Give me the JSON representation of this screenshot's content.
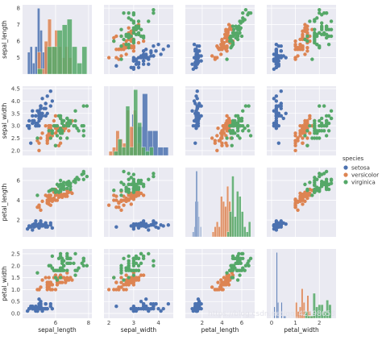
{
  "chart_data": {
    "type": "scatter",
    "variables": [
      "sepal_length",
      "sepal_width",
      "petal_length",
      "petal_width"
    ],
    "axis_labels": {
      "rows": [
        "sepal_length",
        "sepal_width",
        "petal_length",
        "petal_width"
      ],
      "cols": [
        "sepal_length",
        "sepal_width",
        "petal_length",
        "petal_width"
      ]
    },
    "ticks": {
      "sepal_length": [
        5,
        6,
        7,
        8
      ],
      "sepal_width": [
        2.0,
        2.5,
        3.0,
        3.5,
        4.0,
        4.5
      ],
      "petal_length": [
        2,
        4,
        6
      ],
      "petal_width": [
        0.0,
        0.5,
        1.0,
        1.5,
        2.0,
        2.5
      ]
    },
    "ticks_x": {
      "sepal_length": [
        6,
        8
      ],
      "sepal_width": [
        2,
        3,
        4
      ],
      "petal_length": [
        2,
        4,
        6
      ],
      "petal_width": [
        0,
        1,
        2
      ]
    },
    "ranges": {
      "sepal_length": [
        4.0,
        8.2
      ],
      "sepal_width": [
        1.8,
        4.6
      ],
      "petal_length": [
        0.3,
        7.3
      ],
      "petal_width": [
        -0.2,
        2.7
      ]
    },
    "diag_range": {
      "sepal_length": [
        4.0,
        8.2
      ]
    },
    "diagonal": "histogram",
    "grid": true,
    "legend": {
      "title": "species",
      "placement": "right",
      "entries": [
        {
          "name": "setosa",
          "color": "#4c72b0"
        },
        {
          "name": "versicolor",
          "color": "#dd8452"
        },
        {
          "name": "virginica",
          "color": "#55a868"
        }
      ]
    },
    "watermark": "https://blog.csdn.net/qq_42398658",
    "series": [
      {
        "name": "setosa",
        "color": "#4c72b0",
        "points": [
          [
            5.1,
            3.5,
            1.4,
            0.2
          ],
          [
            4.9,
            3.0,
            1.4,
            0.2
          ],
          [
            4.7,
            3.2,
            1.3,
            0.2
          ],
          [
            4.6,
            3.1,
            1.5,
            0.2
          ],
          [
            5.0,
            3.6,
            1.4,
            0.2
          ],
          [
            5.4,
            3.9,
            1.7,
            0.4
          ],
          [
            4.6,
            3.4,
            1.4,
            0.3
          ],
          [
            5.0,
            3.4,
            1.5,
            0.2
          ],
          [
            4.4,
            2.9,
            1.4,
            0.2
          ],
          [
            4.9,
            3.1,
            1.5,
            0.1
          ],
          [
            5.4,
            3.7,
            1.5,
            0.2
          ],
          [
            4.8,
            3.4,
            1.6,
            0.2
          ],
          [
            4.8,
            3.0,
            1.4,
            0.1
          ],
          [
            4.3,
            3.0,
            1.1,
            0.1
          ],
          [
            5.8,
            4.0,
            1.2,
            0.2
          ],
          [
            5.7,
            4.4,
            1.5,
            0.4
          ],
          [
            5.4,
            3.9,
            1.3,
            0.4
          ],
          [
            5.1,
            3.5,
            1.4,
            0.3
          ],
          [
            5.7,
            3.8,
            1.7,
            0.3
          ],
          [
            5.1,
            3.8,
            1.5,
            0.3
          ],
          [
            5.4,
            3.4,
            1.7,
            0.2
          ],
          [
            5.1,
            3.7,
            1.5,
            0.4
          ],
          [
            4.6,
            3.6,
            1.0,
            0.2
          ],
          [
            5.1,
            3.3,
            1.7,
            0.5
          ],
          [
            4.8,
            3.4,
            1.9,
            0.2
          ],
          [
            5.0,
            3.0,
            1.6,
            0.2
          ],
          [
            5.0,
            3.4,
            1.6,
            0.4
          ],
          [
            5.2,
            3.5,
            1.5,
            0.2
          ],
          [
            5.2,
            3.4,
            1.4,
            0.2
          ],
          [
            4.7,
            3.2,
            1.6,
            0.2
          ],
          [
            4.8,
            3.1,
            1.6,
            0.2
          ],
          [
            5.4,
            3.4,
            1.5,
            0.4
          ],
          [
            5.2,
            4.1,
            1.5,
            0.1
          ],
          [
            5.5,
            4.2,
            1.4,
            0.2
          ],
          [
            4.9,
            3.1,
            1.5,
            0.2
          ],
          [
            5.0,
            3.2,
            1.2,
            0.2
          ],
          [
            5.5,
            3.5,
            1.3,
            0.2
          ],
          [
            4.9,
            3.6,
            1.4,
            0.1
          ],
          [
            4.4,
            3.0,
            1.3,
            0.2
          ],
          [
            5.1,
            3.4,
            1.5,
            0.2
          ],
          [
            5.0,
            3.5,
            1.3,
            0.3
          ],
          [
            4.5,
            2.3,
            1.3,
            0.3
          ],
          [
            4.4,
            3.2,
            1.3,
            0.2
          ],
          [
            5.0,
            3.5,
            1.6,
            0.6
          ],
          [
            5.1,
            3.8,
            1.9,
            0.4
          ],
          [
            4.8,
            3.0,
            1.4,
            0.3
          ],
          [
            5.1,
            3.8,
            1.6,
            0.2
          ],
          [
            4.6,
            3.2,
            1.4,
            0.2
          ],
          [
            5.3,
            3.7,
            1.5,
            0.2
          ],
          [
            5.0,
            3.3,
            1.4,
            0.2
          ]
        ]
      },
      {
        "name": "versicolor",
        "color": "#dd8452",
        "points": [
          [
            7.0,
            3.2,
            4.7,
            1.4
          ],
          [
            6.4,
            3.2,
            4.5,
            1.5
          ],
          [
            6.9,
            3.1,
            4.9,
            1.5
          ],
          [
            5.5,
            2.3,
            4.0,
            1.3
          ],
          [
            6.5,
            2.8,
            4.6,
            1.5
          ],
          [
            5.7,
            2.8,
            4.5,
            1.3
          ],
          [
            6.3,
            3.3,
            4.7,
            1.6
          ],
          [
            4.9,
            2.4,
            3.3,
            1.0
          ],
          [
            6.6,
            2.9,
            4.6,
            1.3
          ],
          [
            5.2,
            2.7,
            3.9,
            1.4
          ],
          [
            5.0,
            2.0,
            3.5,
            1.0
          ],
          [
            5.9,
            3.0,
            4.2,
            1.5
          ],
          [
            6.0,
            2.2,
            4.0,
            1.0
          ],
          [
            6.1,
            2.9,
            4.7,
            1.4
          ],
          [
            5.6,
            2.9,
            3.6,
            1.3
          ],
          [
            6.7,
            3.1,
            4.4,
            1.4
          ],
          [
            5.6,
            3.0,
            4.5,
            1.5
          ],
          [
            5.8,
            2.7,
            4.1,
            1.0
          ],
          [
            6.2,
            2.2,
            4.5,
            1.5
          ],
          [
            5.6,
            2.5,
            3.9,
            1.1
          ],
          [
            5.9,
            3.2,
            4.8,
            1.8
          ],
          [
            6.1,
            2.8,
            4.0,
            1.3
          ],
          [
            6.3,
            2.5,
            4.9,
            1.5
          ],
          [
            6.1,
            2.8,
            4.7,
            1.2
          ],
          [
            6.4,
            2.9,
            4.3,
            1.3
          ],
          [
            6.6,
            3.0,
            4.4,
            1.4
          ],
          [
            6.8,
            2.8,
            4.8,
            1.4
          ],
          [
            6.7,
            3.0,
            5.0,
            1.7
          ],
          [
            6.0,
            2.9,
            4.5,
            1.5
          ],
          [
            5.7,
            2.6,
            3.5,
            1.0
          ],
          [
            5.5,
            2.4,
            3.8,
            1.1
          ],
          [
            5.5,
            2.4,
            3.7,
            1.0
          ],
          [
            5.8,
            2.7,
            3.9,
            1.2
          ],
          [
            6.0,
            2.7,
            5.1,
            1.6
          ],
          [
            5.4,
            3.0,
            4.5,
            1.5
          ],
          [
            6.0,
            3.4,
            4.5,
            1.6
          ],
          [
            6.7,
            3.1,
            4.7,
            1.5
          ],
          [
            6.3,
            2.3,
            4.4,
            1.3
          ],
          [
            5.6,
            3.0,
            4.1,
            1.3
          ],
          [
            5.5,
            2.5,
            4.0,
            1.3
          ],
          [
            5.5,
            2.6,
            4.4,
            1.2
          ],
          [
            6.1,
            3.0,
            4.6,
            1.4
          ],
          [
            5.8,
            2.6,
            4.0,
            1.2
          ],
          [
            5.0,
            2.3,
            3.3,
            1.0
          ],
          [
            5.6,
            2.7,
            4.2,
            1.3
          ],
          [
            5.7,
            3.0,
            4.2,
            1.2
          ],
          [
            5.7,
            2.9,
            4.2,
            1.3
          ],
          [
            6.2,
            2.9,
            4.3,
            1.3
          ],
          [
            5.1,
            2.5,
            3.0,
            1.1
          ],
          [
            5.7,
            2.8,
            4.1,
            1.3
          ]
        ]
      },
      {
        "name": "virginica",
        "color": "#55a868",
        "points": [
          [
            6.3,
            3.3,
            6.0,
            2.5
          ],
          [
            5.8,
            2.7,
            5.1,
            1.9
          ],
          [
            7.1,
            3.0,
            5.9,
            2.1
          ],
          [
            6.3,
            2.9,
            5.6,
            1.8
          ],
          [
            6.5,
            3.0,
            5.8,
            2.2
          ],
          [
            7.6,
            3.0,
            6.6,
            2.1
          ],
          [
            4.9,
            2.5,
            4.5,
            1.7
          ],
          [
            7.3,
            2.9,
            6.3,
            1.8
          ],
          [
            6.7,
            2.5,
            5.8,
            1.8
          ],
          [
            7.2,
            3.6,
            6.1,
            2.5
          ],
          [
            6.5,
            3.2,
            5.1,
            2.0
          ],
          [
            6.4,
            2.7,
            5.3,
            1.9
          ],
          [
            6.8,
            3.0,
            5.5,
            2.1
          ],
          [
            5.7,
            2.5,
            5.0,
            2.0
          ],
          [
            5.8,
            2.8,
            5.1,
            2.4
          ],
          [
            6.4,
            3.2,
            5.3,
            2.3
          ],
          [
            6.5,
            3.0,
            5.5,
            1.8
          ],
          [
            7.7,
            3.8,
            6.7,
            2.2
          ],
          [
            7.7,
            2.6,
            6.9,
            2.3
          ],
          [
            6.0,
            2.2,
            5.0,
            1.5
          ],
          [
            6.9,
            3.2,
            5.7,
            2.3
          ],
          [
            5.6,
            2.8,
            4.9,
            2.0
          ],
          [
            7.7,
            2.8,
            6.7,
            2.0
          ],
          [
            6.3,
            2.7,
            4.9,
            1.8
          ],
          [
            6.7,
            3.3,
            5.7,
            2.1
          ],
          [
            7.2,
            3.2,
            6.0,
            1.8
          ],
          [
            6.2,
            2.8,
            4.8,
            1.8
          ],
          [
            6.1,
            3.0,
            4.9,
            1.8
          ],
          [
            6.4,
            2.8,
            5.6,
            2.1
          ],
          [
            7.2,
            3.0,
            5.8,
            1.6
          ],
          [
            7.4,
            2.8,
            6.1,
            1.9
          ],
          [
            7.9,
            3.8,
            6.4,
            2.0
          ],
          [
            6.4,
            2.8,
            5.6,
            2.2
          ],
          [
            6.3,
            2.8,
            5.1,
            1.5
          ],
          [
            6.1,
            2.6,
            5.6,
            1.4
          ],
          [
            7.7,
            3.0,
            6.1,
            2.3
          ],
          [
            6.3,
            3.4,
            5.6,
            2.4
          ],
          [
            6.4,
            3.1,
            5.5,
            1.8
          ],
          [
            6.0,
            3.0,
            4.8,
            1.8
          ],
          [
            6.9,
            3.1,
            5.4,
            2.1
          ],
          [
            6.7,
            3.1,
            5.6,
            2.4
          ],
          [
            6.9,
            3.1,
            5.1,
            2.3
          ],
          [
            5.8,
            2.7,
            5.1,
            1.9
          ],
          [
            6.8,
            3.2,
            5.9,
            2.3
          ],
          [
            6.7,
            3.3,
            5.7,
            2.5
          ],
          [
            6.7,
            3.0,
            5.2,
            2.3
          ],
          [
            6.3,
            2.5,
            5.0,
            1.9
          ],
          [
            6.5,
            3.0,
            5.2,
            2.0
          ],
          [
            6.2,
            3.4,
            5.4,
            2.3
          ],
          [
            5.9,
            3.0,
            5.1,
            1.8
          ]
        ]
      }
    ]
  }
}
